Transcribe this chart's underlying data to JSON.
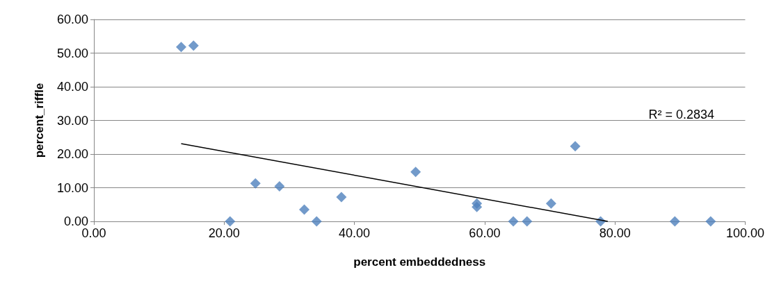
{
  "chart_data": {
    "type": "scatter",
    "xlabel": "percent embeddedness",
    "ylabel": "percent_riffle",
    "marker": "diamond",
    "grid": "y",
    "xlim": [
      0,
      100
    ],
    "xticks": [
      {
        "value": 0,
        "label": "0.00"
      },
      {
        "value": 20,
        "label": "20.00"
      },
      {
        "value": 40,
        "label": "40.00"
      },
      {
        "value": 60,
        "label": "60.00"
      },
      {
        "value": 80,
        "label": "80.00"
      },
      {
        "value": 100,
        "label": "100.00"
      }
    ],
    "ylim": [
      0,
      60
    ],
    "yticks": [
      {
        "value": 0,
        "label": "0.00"
      },
      {
        "value": 10,
        "label": "10.00"
      },
      {
        "value": 20,
        "label": "20.00"
      },
      {
        "value": 30,
        "label": "30.00"
      },
      {
        "value": 40,
        "label": "40.00"
      },
      {
        "value": 50,
        "label": "50.00"
      },
      {
        "value": 60,
        "label": "60.00"
      }
    ],
    "series": [
      {
        "color": "#4f81bd",
        "x": [
          13.4,
          15.3,
          20.9,
          24.8,
          28.5,
          32.3,
          34.2,
          38.0,
          49.4,
          58.8,
          58.8,
          64.4,
          66.5,
          70.2,
          73.9,
          77.8,
          89.2,
          94.7
        ],
        "values": [
          51.8,
          52.2,
          0,
          11.3,
          10.4,
          3.5,
          0,
          7.2,
          14.7,
          5.3,
          4.3,
          0,
          0,
          5.3,
          22.3,
          0,
          0,
          0
        ]
      },
      {
        "type": "line",
        "color": "#000000",
        "marker": "none",
        "x": [
          13.4,
          78.9
        ],
        "values": [
          23.1,
          0
        ]
      }
    ],
    "annotations": [
      "R² = 0.2834"
    ]
  }
}
